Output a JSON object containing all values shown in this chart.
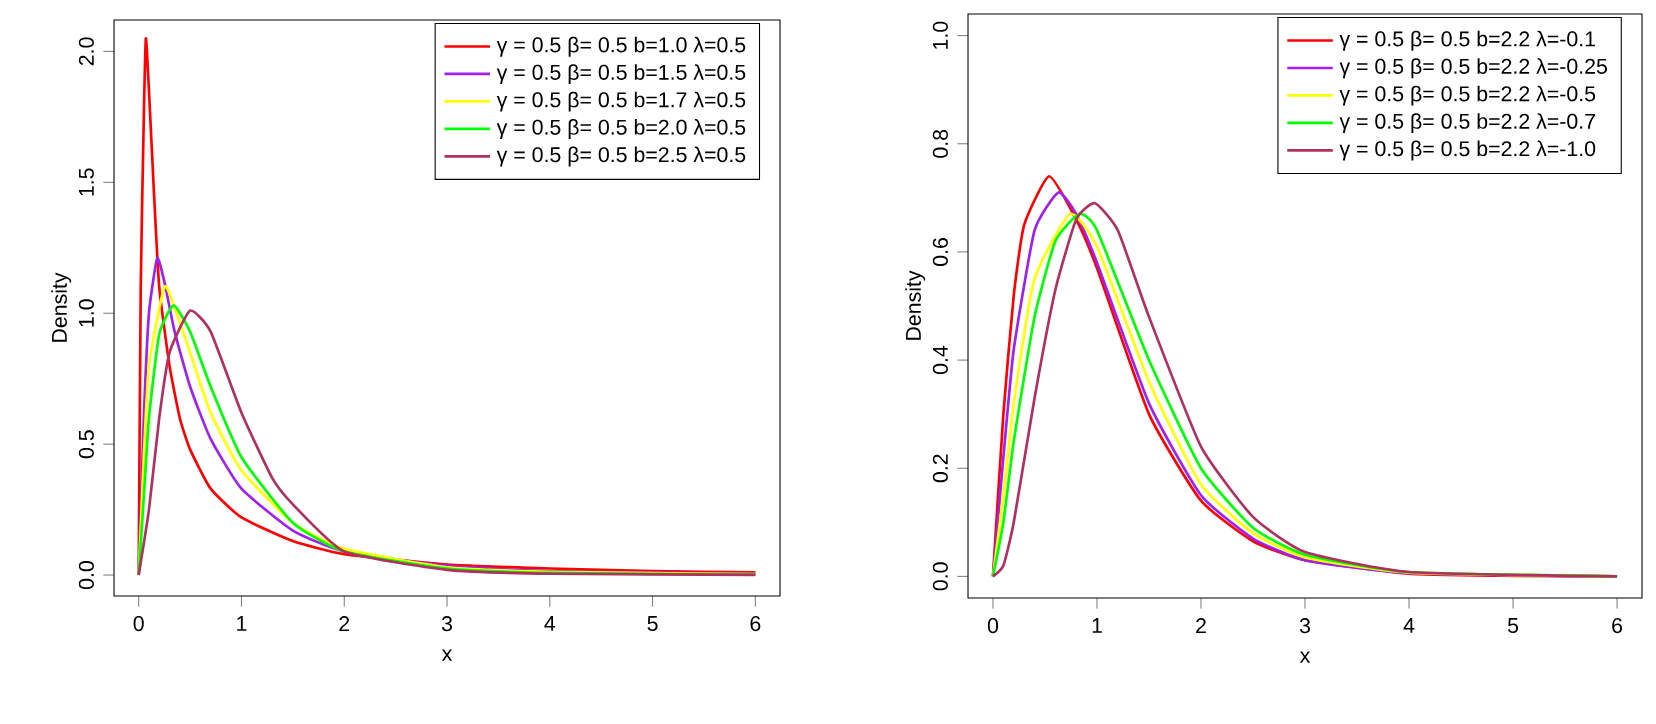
{
  "chart_data": [
    {
      "type": "line",
      "xlabel": "x",
      "ylabel": "Density",
      "xlim": [
        -0.24,
        6.24
      ],
      "ylim": [
        -0.08,
        2.12
      ],
      "xticks": [
        0,
        1,
        2,
        3,
        4,
        5,
        6
      ],
      "yticks": [
        {
          "value": 0,
          "label": "0.0"
        },
        {
          "value": 0.5,
          "label": "0.5"
        },
        {
          "value": 1,
          "label": "1.0"
        },
        {
          "value": 1.5,
          "label": "1.5"
        },
        {
          "value": 2,
          "label": "2.0"
        }
      ],
      "legend": "top right",
      "series": [
        {
          "name": "γ = 0.5 β= 0.5 b=1.0 λ=0.5",
          "color": "#ff0000",
          "x": [
            0,
            0.02,
            0.05,
            0.07,
            0.1,
            0.15,
            0.2,
            0.3,
            0.4,
            0.5,
            0.7,
            1.0,
            1.5,
            2,
            3,
            4,
            5,
            6
          ],
          "values": [
            0,
            1.1,
            1.75,
            2.05,
            1.85,
            1.45,
            1.1,
            0.8,
            0.6,
            0.48,
            0.33,
            0.22,
            0.13,
            0.08,
            0.04,
            0.025,
            0.015,
            0.01
          ]
        },
        {
          "name": "γ = 0.5 β= 0.5 b=1.5 λ=0.5",
          "color": "#a020f0",
          "x": [
            0,
            0.05,
            0.1,
            0.18,
            0.25,
            0.35,
            0.5,
            0.7,
            1,
            1.5,
            2,
            3,
            4,
            6
          ],
          "values": [
            0,
            0.6,
            1.0,
            1.21,
            1.12,
            0.93,
            0.72,
            0.52,
            0.33,
            0.17,
            0.09,
            0.035,
            0.015,
            0.005
          ]
        },
        {
          "name": "γ = 0.5 β= 0.5 b=1.7 λ=0.5",
          "color": "#ffff00",
          "x": [
            0,
            0.05,
            0.1,
            0.25,
            0.35,
            0.5,
            0.7,
            1,
            1.5,
            2,
            3,
            4,
            6
          ],
          "values": [
            0,
            0.45,
            0.8,
            1.1,
            1.02,
            0.85,
            0.62,
            0.4,
            0.2,
            0.1,
            0.03,
            0.012,
            0.004
          ]
        },
        {
          "name": "γ = 0.5 β= 0.5 b=2.0 λ=0.5",
          "color": "#00ff00",
          "x": [
            0,
            0.05,
            0.1,
            0.2,
            0.34,
            0.5,
            0.7,
            1,
            1.5,
            2,
            3,
            4,
            6
          ],
          "values": [
            0,
            0.3,
            0.6,
            0.92,
            1.03,
            0.93,
            0.72,
            0.45,
            0.2,
            0.09,
            0.025,
            0.008,
            0.002
          ]
        },
        {
          "name": "γ = 0.5 β= 0.5 b=2.5 λ=0.5",
          "color": "#b03060",
          "x": [
            0,
            0.1,
            0.2,
            0.3,
            0.5,
            0.7,
            1,
            1.3,
            1.5,
            2,
            3,
            4,
            6
          ],
          "values": [
            0,
            0.25,
            0.6,
            0.85,
            1.01,
            0.93,
            0.62,
            0.37,
            0.27,
            0.09,
            0.02,
            0.005,
            0.001
          ]
        }
      ]
    },
    {
      "type": "line",
      "xlabel": "x",
      "ylabel": "Density",
      "xlim": [
        -0.24,
        6.24
      ],
      "ylim": [
        -0.04,
        1.04
      ],
      "xticks": [
        0,
        1,
        2,
        3,
        4,
        5,
        6
      ],
      "yticks": [
        {
          "value": 0,
          "label": "0.0"
        },
        {
          "value": 0.2,
          "label": "0.2"
        },
        {
          "value": 0.4,
          "label": "0.4"
        },
        {
          "value": 0.6,
          "label": "0.6"
        },
        {
          "value": 0.8,
          "label": "0.8"
        },
        {
          "value": 1,
          "label": "1.0"
        }
      ],
      "legend": "top right",
      "series": [
        {
          "name": "γ = 0.5 β= 0.5 b=2.2 λ=-0.1",
          "color": "#ff0000",
          "x": [
            0,
            0.1,
            0.2,
            0.3,
            0.54,
            0.8,
            1,
            1.5,
            2,
            2.5,
            3,
            4,
            5,
            6
          ],
          "values": [
            0,
            0.3,
            0.52,
            0.65,
            0.74,
            0.66,
            0.57,
            0.3,
            0.14,
            0.065,
            0.03,
            0.005,
            0.001,
            0
          ]
        },
        {
          "name": "γ = 0.5 β= 0.5 b=2.2 λ=-0.25",
          "color": "#a020f0",
          "x": [
            0,
            0.1,
            0.2,
            0.4,
            0.63,
            0.8,
            1,
            1.5,
            2,
            2.5,
            3,
            4,
            6
          ],
          "values": [
            0,
            0.22,
            0.42,
            0.64,
            0.71,
            0.67,
            0.58,
            0.32,
            0.15,
            0.07,
            0.03,
            0.006,
            0
          ]
        },
        {
          "name": "γ = 0.5 β= 0.5 b=2.2 λ=-0.5",
          "color": "#ffff00",
          "x": [
            0,
            0.1,
            0.2,
            0.4,
            0.74,
            1,
            1.5,
            2,
            2.5,
            3,
            4,
            6
          ],
          "values": [
            0,
            0.15,
            0.32,
            0.55,
            0.67,
            0.61,
            0.36,
            0.17,
            0.08,
            0.035,
            0.007,
            0
          ]
        },
        {
          "name": "γ = 0.5 β= 0.5 b=2.2 λ=-0.7",
          "color": "#00ff00",
          "x": [
            0,
            0.1,
            0.2,
            0.4,
            0.6,
            0.83,
            1,
            1.5,
            2,
            2.5,
            3,
            4,
            6
          ],
          "values": [
            0,
            0.1,
            0.25,
            0.48,
            0.62,
            0.67,
            0.64,
            0.4,
            0.2,
            0.09,
            0.04,
            0.008,
            0
          ]
        },
        {
          "name": "γ = 0.5 β= 0.5 b=2.2 λ=-1.0",
          "color": "#b03060",
          "x": [
            0,
            0.1,
            0.2,
            0.4,
            0.6,
            0.8,
            0.98,
            1.2,
            1.5,
            2,
            2.5,
            3,
            4,
            6
          ],
          "values": [
            0,
            0.02,
            0.1,
            0.33,
            0.53,
            0.66,
            0.69,
            0.64,
            0.48,
            0.24,
            0.11,
            0.045,
            0.008,
            0
          ]
        }
      ]
    }
  ]
}
